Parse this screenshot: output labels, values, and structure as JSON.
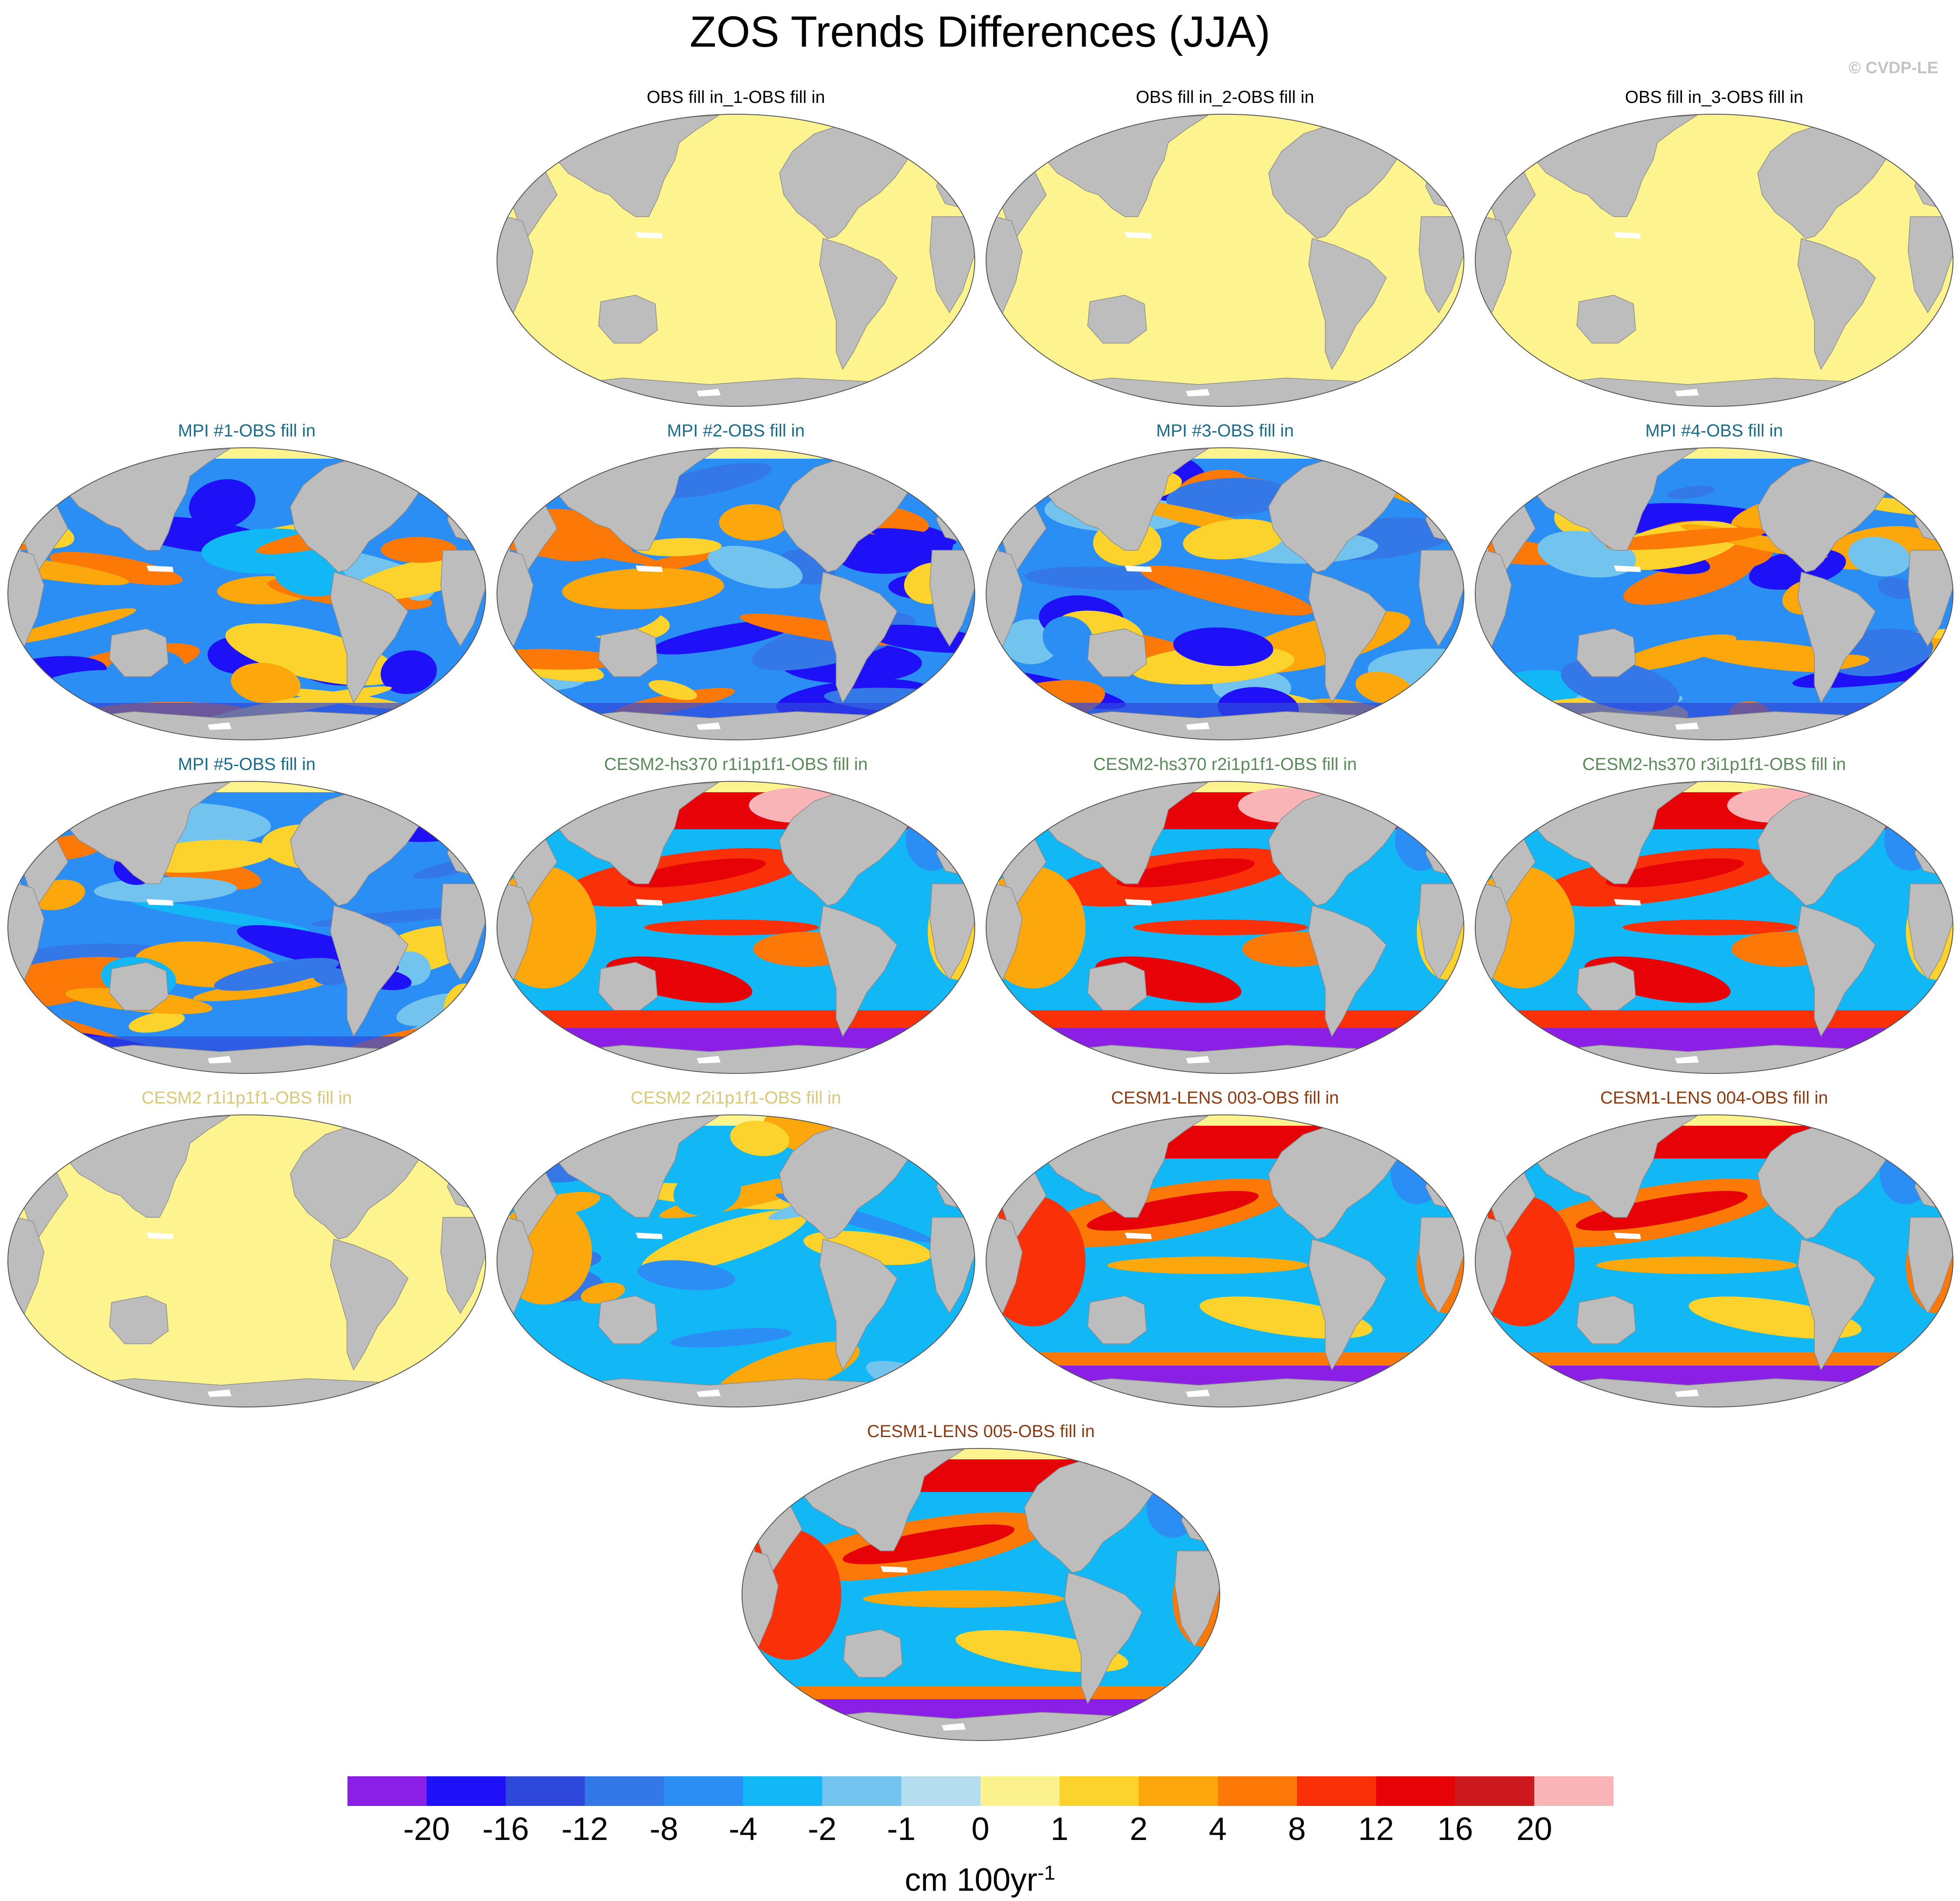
{
  "title": "ZOS Trends Differences (JJA)",
  "copyright": "© CVDP-LE",
  "colors": {
    "land": "#bdbdbd",
    "flat": "#fdf490",
    "title_default": "#000000",
    "title_mpi": "#1a6b8a",
    "title_cesm2_hs370": "#5a8a5a",
    "title_cesm2": "#d8c878",
    "title_cesm1_lens": "#8b3a10"
  },
  "panels": [
    {
      "title": "OBS fill in_1-OBS fill in",
      "group": "obs",
      "pattern": "flat"
    },
    {
      "title": "OBS fill in_2-OBS fill in",
      "group": "obs",
      "pattern": "flat"
    },
    {
      "title": "OBS fill in_3-OBS fill in",
      "group": "obs",
      "pattern": "flat"
    },
    {
      "title": "MPI #1-OBS fill in",
      "group": "mpi",
      "pattern": "mpi"
    },
    {
      "title": "MPI #2-OBS fill in",
      "group": "mpi",
      "pattern": "mpi"
    },
    {
      "title": "MPI #3-OBS fill in",
      "group": "mpi",
      "pattern": "mpi"
    },
    {
      "title": "MPI #4-OBS fill in",
      "group": "mpi",
      "pattern": "mpi"
    },
    {
      "title": "MPI #5-OBS fill in",
      "group": "mpi",
      "pattern": "mpi"
    },
    {
      "title": "CESM2-hs370 r1i1p1f1-OBS fill in",
      "group": "cesm2_hs370",
      "pattern": "hs370"
    },
    {
      "title": "CESM2-hs370 r2i1p1f1-OBS fill in",
      "group": "cesm2_hs370",
      "pattern": "hs370"
    },
    {
      "title": "CESM2-hs370 r3i1p1f1-OBS fill in",
      "group": "cesm2_hs370",
      "pattern": "hs370"
    },
    {
      "title": "CESM2 r1i1p1f1-OBS fill in",
      "group": "cesm2",
      "pattern": "flat"
    },
    {
      "title": "CESM2 r2i1p1f1-OBS fill in",
      "group": "cesm2",
      "pattern": "cesm2"
    },
    {
      "title": "CESM1-LENS 003-OBS fill in",
      "group": "cesm1_lens",
      "pattern": "lens"
    },
    {
      "title": "CESM1-LENS 004-OBS fill in",
      "group": "cesm1_lens",
      "pattern": "lens"
    },
    {
      "title": "CESM1-LENS 005-OBS fill in",
      "group": "cesm1_lens",
      "pattern": "lens"
    }
  ],
  "colorbar": {
    "colors": [
      "#8b1fe6",
      "#1e10f7",
      "#2e48dc",
      "#3478e8",
      "#2b8ef4",
      "#12b8f5",
      "#72c4ee",
      "#b4ddf0",
      "#fbf28e",
      "#fcd32c",
      "#fca70c",
      "#fc7908",
      "#fa3108",
      "#e60207",
      "#cc191d",
      "#f9b4b8"
    ],
    "labels": [
      "-20",
      "-16",
      "-12",
      "-8",
      "-4",
      "-2",
      "-1",
      "0",
      "1",
      "2",
      "4",
      "8",
      "12",
      "16",
      "20"
    ],
    "units": "cm 100yr",
    "units_exponent": "-1"
  }
}
